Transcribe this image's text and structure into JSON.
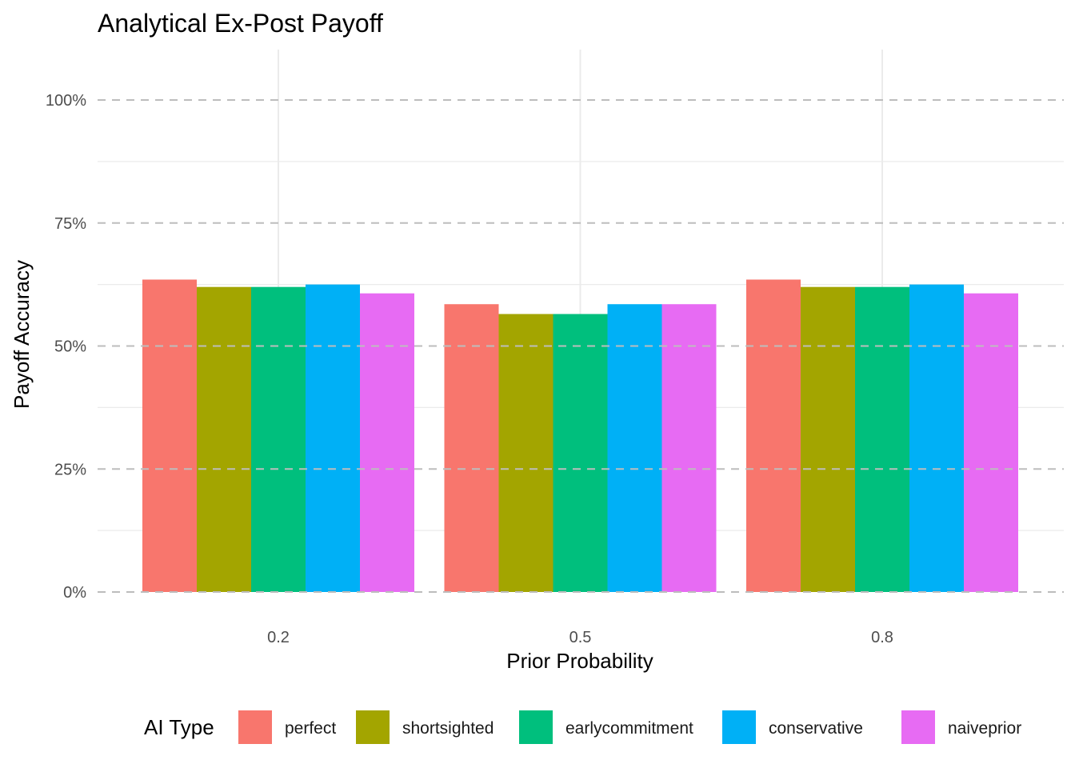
{
  "chart_data": {
    "type": "bar",
    "title": "Analytical Ex-Post Payoff",
    "xlabel": "Prior Probability",
    "ylabel": "Payoff Accuracy",
    "categories": [
      "0.2",
      "0.5",
      "0.8"
    ],
    "ylim": [
      0,
      1.05
    ],
    "yticks": [
      0,
      0.25,
      0.5,
      0.75,
      1.0
    ],
    "ytick_labels": [
      "0%",
      "25%",
      "50%",
      "75%",
      "100%"
    ],
    "grid": true,
    "legend": {
      "title": "AI Type",
      "position": "bottom"
    },
    "series": [
      {
        "name": "perfect",
        "color": "#F8766D",
        "values": [
          0.635,
          0.585,
          0.635
        ]
      },
      {
        "name": "shortsighted",
        "color": "#A3A500",
        "values": [
          0.62,
          0.565,
          0.62
        ]
      },
      {
        "name": "earlycommitment",
        "color": "#00BF7D",
        "values": [
          0.62,
          0.565,
          0.62
        ]
      },
      {
        "name": "conservative",
        "color": "#00B0F6",
        "values": [
          0.625,
          0.585,
          0.625
        ]
      },
      {
        "name": "naiveprior",
        "color": "#E76BF3",
        "values": [
          0.607,
          0.585,
          0.607
        ]
      }
    ]
  }
}
